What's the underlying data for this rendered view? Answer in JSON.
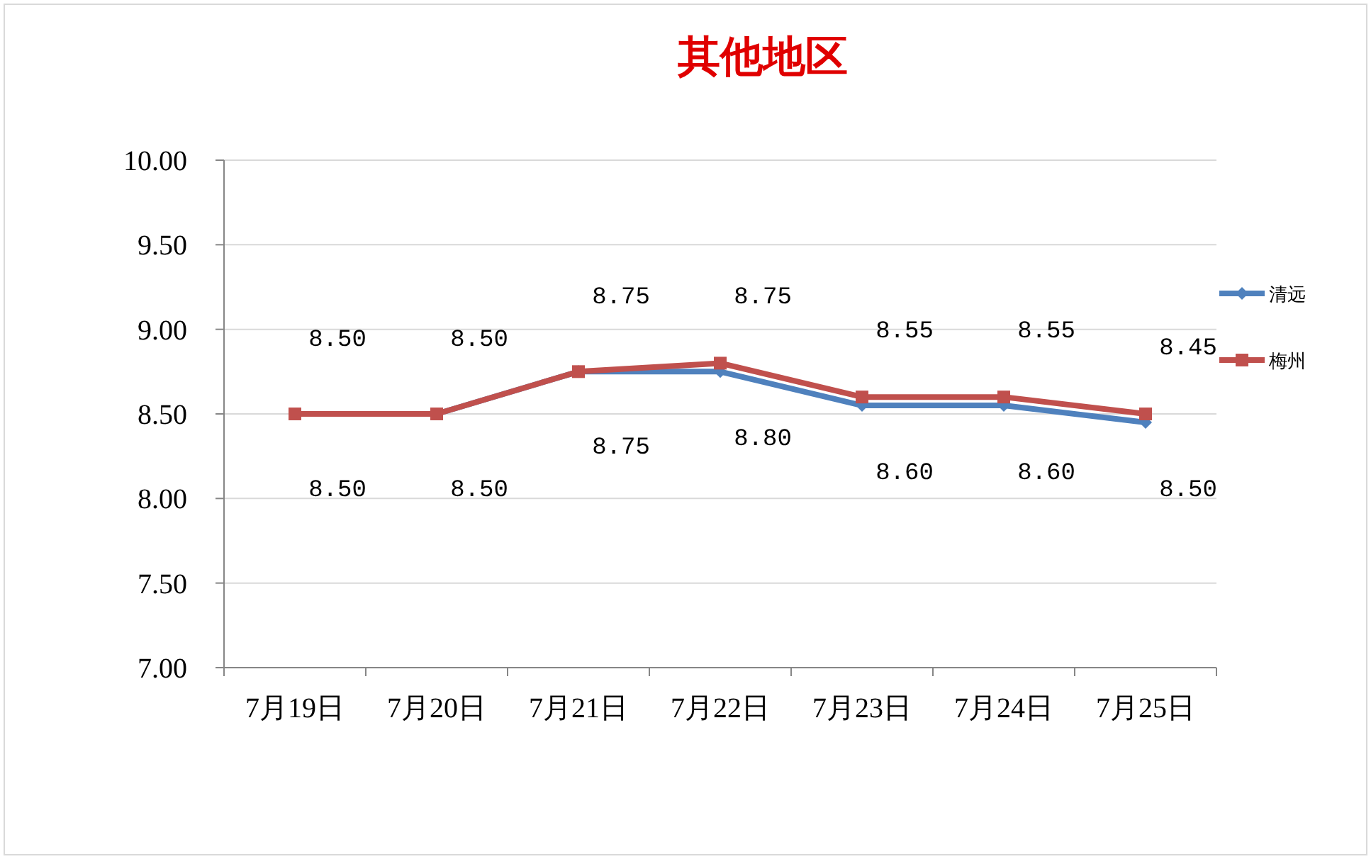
{
  "chart_data": {
    "type": "line",
    "title": "其他地区",
    "categories": [
      "7月19日",
      "7月20日",
      "7月21日",
      "7月22日",
      "7月23日",
      "7月24日",
      "7月25日"
    ],
    "series": [
      {
        "name": "清远",
        "color": "#4f81bd",
        "marker": "diamond",
        "values": [
          8.5,
          8.5,
          8.75,
          8.75,
          8.55,
          8.55,
          8.45
        ],
        "value_labels": [
          "8.50",
          "8.50",
          "8.75",
          "8.75",
          "8.55",
          "8.55",
          "8.45"
        ]
      },
      {
        "name": "梅州",
        "color": "#c0504d",
        "marker": "square",
        "values": [
          8.5,
          8.5,
          8.75,
          8.8,
          8.6,
          8.6,
          8.5
        ],
        "value_labels": [
          "8.50",
          "8.50",
          "8.75",
          "8.80",
          "8.60",
          "8.60",
          "8.50"
        ]
      }
    ],
    "ylim": [
      7.0,
      10.0
    ],
    "yticks": [
      {
        "value": 7.0,
        "label": "7.00"
      },
      {
        "value": 7.5,
        "label": "7.50"
      },
      {
        "value": 8.0,
        "label": "8.00"
      },
      {
        "value": 8.5,
        "label": "8.50"
      },
      {
        "value": 9.0,
        "label": "9.00"
      },
      {
        "value": 9.5,
        "label": "9.50"
      },
      {
        "value": 10.0,
        "label": "10.00"
      }
    ],
    "grid": "y",
    "legend": "right",
    "line_style": "solid"
  }
}
